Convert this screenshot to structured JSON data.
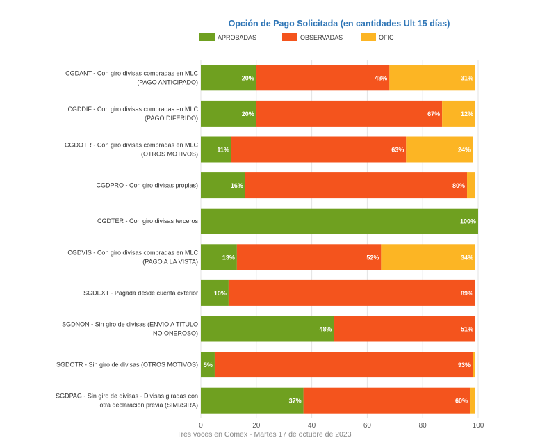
{
  "chart_data": {
    "type": "bar",
    "orientation": "horizontal",
    "stacked": true,
    "title": "Opción de Pago Solicitada (en cantidades Ult 15 días)",
    "legend": [
      {
        "name": "APROBADAS",
        "color": "#6fa020"
      },
      {
        "name": "OBSERVADAS",
        "color": "#f4541d"
      },
      {
        "name": "OFIC",
        "color": "#fcb524"
      }
    ],
    "legend_position": "top",
    "categories": [
      [
        "CGDANT - Con giro divisas compradas en MLC",
        "(PAGO ANTICIPADO)"
      ],
      [
        "CGDDIF - Con giro divisas compradas en MLC",
        "(PAGO DIFERIDO)"
      ],
      [
        "CGDOTR - Con giro divisas compradas en MLC",
        "(OTROS MOTIVOS)"
      ],
      [
        "CGDPRO - Con giro divisas propias)"
      ],
      [
        "CGDTER - Con giro divisas terceros"
      ],
      [
        "CGDVIS - Con giro divisas compradas en MLC",
        "(PAGO A LA VISTA)"
      ],
      [
        "SGDEXT - Pagada desde cuenta exterior"
      ],
      [
        "SGDNON - Sin giro de divisas (ENVIO A TITULO",
        "NO ONEROSO)"
      ],
      [
        "SGDOTR - Sin giro de divisas (OTROS MOTIVOS)"
      ],
      [
        "SGDPAG - Sin giro de divisas - Divisas giradas con",
        "otra declaración previa (SIMI/SIRA)"
      ]
    ],
    "series": [
      {
        "name": "APROBADAS",
        "values": [
          20,
          20,
          11,
          16,
          100,
          13,
          10,
          48,
          5,
          37
        ],
        "labels": [
          "20%",
          "20%",
          "11%",
          "16%",
          "100%",
          "13%",
          "10%",
          "48%",
          "5%",
          "37%"
        ]
      },
      {
        "name": "OBSERVADAS",
        "values": [
          48,
          67,
          63,
          80,
          0,
          52,
          89,
          51,
          93,
          60
        ],
        "labels": [
          "48%",
          "67%",
          "63%",
          "80%",
          "",
          "52%",
          "89%",
          "51%",
          "93%",
          "60%"
        ]
      },
      {
        "name": "OFIC",
        "values": [
          31,
          12,
          24,
          3,
          0,
          34,
          0,
          0,
          1,
          2
        ],
        "labels": [
          "31%",
          "12%",
          "24%",
          "",
          "",
          "34%",
          "",
          "",
          "",
          ""
        ]
      }
    ],
    "xlim": [
      0,
      100
    ],
    "xticks": [
      0,
      20,
      40,
      60,
      80,
      100
    ],
    "grid": true,
    "caption": "Tres voces en Comex - Martes 17 de octubre de 2023"
  }
}
